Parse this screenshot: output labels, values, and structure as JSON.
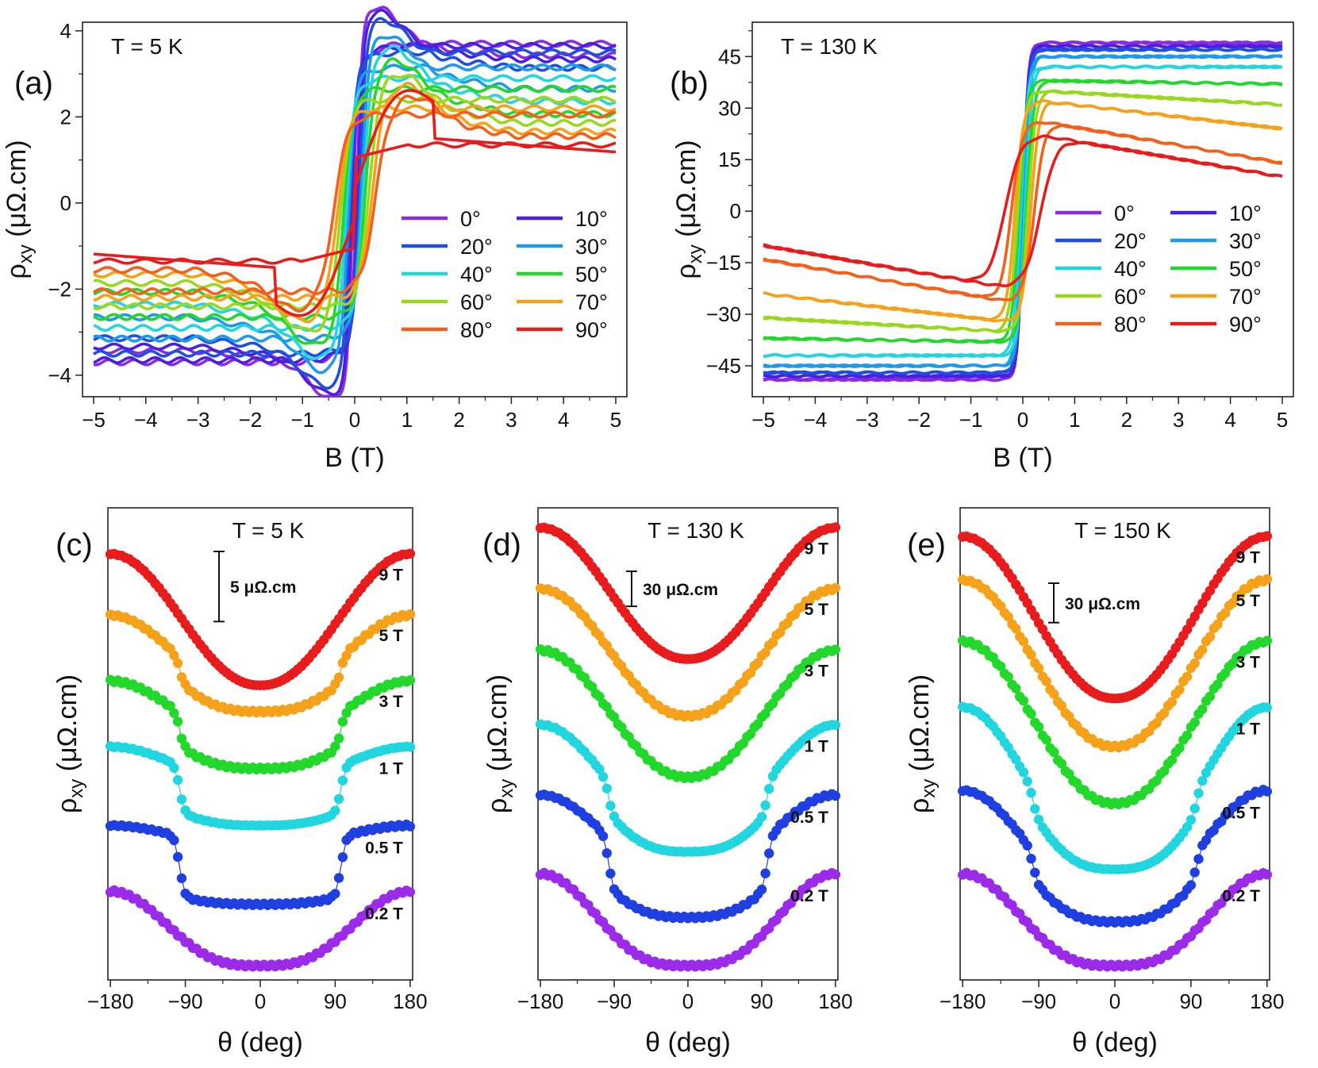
{
  "chart_data": [
    {
      "id": "a",
      "type": "line",
      "panel_label": "(a)",
      "annotation": "T = 5 K",
      "xlabel": "B (T)",
      "ylabel_main": "ρ",
      "ylabel_sub": "xy",
      "ylabel_unit": " (μΩ.cm)",
      "xlim": [
        -5,
        5
      ],
      "ylim": [
        -4.5,
        4.2
      ],
      "xticks": [
        "−5",
        "−4",
        "−3",
        "−2",
        "−1",
        "0",
        "1",
        "2",
        "3",
        "4",
        "5"
      ],
      "yticks": [
        "−4",
        "−2",
        "0",
        "2",
        "4"
      ],
      "legend": [
        "0°",
        "10°",
        "20°",
        "30°",
        "40°",
        "50°",
        "60°",
        "70°",
        "80°",
        "90°"
      ],
      "series": [
        {
          "name": "0°",
          "color": "#8B2BE2",
          "sat": 3.4,
          "sat_neg": 3.0,
          "hc": 0.05,
          "w": 0.1,
          "peak": 0.85
        },
        {
          "name": "10°",
          "color": "#4B1FE0",
          "sat": 3.3,
          "sat_neg": 3.0,
          "hc": 0.07,
          "w": 0.1,
          "peak": 0.85
        },
        {
          "name": "20°",
          "color": "#1F4FE0",
          "sat": 3.1,
          "sat_neg": 2.9,
          "hc": 0.1,
          "w": 0.11,
          "peak": 0.9
        },
        {
          "name": "30°",
          "color": "#1E9BE8",
          "sat": 2.6,
          "sat_neg": 2.7,
          "hc": 0.13,
          "w": 0.13,
          "peak": 1.0
        },
        {
          "name": "40°",
          "color": "#22D6E0",
          "sat": 2.3,
          "sat_neg": 2.5,
          "hc": 0.17,
          "w": 0.15,
          "peak": 1.1
        },
        {
          "name": "50°",
          "color": "#22D82A",
          "sat": 2.0,
          "sat_neg": 2.3,
          "hc": 0.21,
          "w": 0.17,
          "peak": 1.2
        },
        {
          "name": "60°",
          "color": "#9AD81E",
          "sat": 1.8,
          "sat_neg": 2.0,
          "hc": 0.27,
          "w": 0.19,
          "peak": 1.3
        },
        {
          "name": "70°",
          "color": "#F5A21A",
          "sat": 1.6,
          "sat_neg": 1.8,
          "hc": 0.33,
          "w": 0.22,
          "peak": 1.5
        },
        {
          "name": "80°",
          "color": "#F2601C",
          "sat": 1.5,
          "sat_neg": 1.6,
          "hc": 0.4,
          "w": 0.26,
          "peak": 1.6
        },
        {
          "name": "90°",
          "color": "#E81C1C",
          "sat": 1.2,
          "sat_neg": 1.2,
          "hc": 0.7,
          "w": 0.35,
          "peak": 1.6
        }
      ]
    },
    {
      "id": "b",
      "type": "line",
      "panel_label": "(b)",
      "annotation": "T = 130 K",
      "xlabel": "B (T)",
      "ylabel_main": "ρ",
      "ylabel_sub": "xy",
      "ylabel_unit": " (μΩ.cm)",
      "xlim": [
        -5,
        5
      ],
      "ylim": [
        -54,
        55
      ],
      "xticks": [
        "−5",
        "−4",
        "−3",
        "−2",
        "−1",
        "0",
        "1",
        "2",
        "3",
        "4",
        "5"
      ],
      "yticks": [
        "−45",
        "−30",
        "−15",
        "0",
        "15",
        "30",
        "45"
      ],
      "legend": [
        "0°",
        "10°",
        "20°",
        "30°",
        "40°",
        "50°",
        "60°",
        "70°",
        "80°",
        "90°"
      ],
      "series": [
        {
          "name": "0°",
          "color": "#8B2BE2",
          "sat": 49,
          "top": 49,
          "hc": 0.0,
          "w": 0.1
        },
        {
          "name": "10°",
          "color": "#4B1FE0",
          "sat": 48,
          "top": 48,
          "hc": 0.0,
          "w": 0.1
        },
        {
          "name": "20°",
          "color": "#1F4FE0",
          "sat": 47,
          "top": 47,
          "hc": 0.0,
          "w": 0.11
        },
        {
          "name": "30°",
          "color": "#1E9BE8",
          "sat": 45,
          "top": 45,
          "hc": 0.02,
          "w": 0.12
        },
        {
          "name": "40°",
          "color": "#22D6E0",
          "sat": 42,
          "top": 42,
          "hc": 0.04,
          "w": 0.13
        },
        {
          "name": "50°",
          "color": "#22D82A",
          "sat": 37,
          "top": 38,
          "hc": 0.07,
          "w": 0.14
        },
        {
          "name": "60°",
          "color": "#9AD81E",
          "sat": 31,
          "top": 35,
          "hc": 0.1,
          "w": 0.15
        },
        {
          "name": "70°",
          "color": "#F5A21A",
          "sat": 24,
          "top": 32,
          "hc": 0.15,
          "w": 0.16
        },
        {
          "name": "80°",
          "color": "#F2601C",
          "sat": 14,
          "top": 26,
          "hc": 0.22,
          "w": 0.2
        },
        {
          "name": "90°",
          "color": "#E81C1C",
          "sat": 10,
          "top": 22,
          "hc": 0.35,
          "w": 0.3
        }
      ]
    },
    {
      "id": "c",
      "type": "scatter",
      "panel_label": "(c)",
      "annotation": "T = 5 K",
      "xlabel": "θ (deg)",
      "ylabel_main": "ρ",
      "ylabel_sub": "xy",
      "ylabel_unit": " (μΩ.cm)",
      "xlim": [
        -183,
        183
      ],
      "ylim": [
        0,
        100
      ],
      "xticks": [
        "−180",
        "−90",
        "0",
        "90",
        "180"
      ],
      "scalebar": {
        "label": "5 μΩ.cm",
        "span": 16
      },
      "series": [
        {
          "name": "9 T",
          "color": "#E81C1C",
          "base": 64,
          "amp": 30,
          "kind": "smooth"
        },
        {
          "name": "5 T",
          "color": "#F5A21A",
          "base": 58,
          "amp": 22,
          "kind": "step",
          "step": 6
        },
        {
          "name": "3 T",
          "color": "#22D82A",
          "base": 45,
          "amp": 20,
          "kind": "step",
          "step": 8
        },
        {
          "name": "1 T",
          "color": "#22D6E0",
          "base": 32,
          "amp": 18,
          "kind": "step",
          "step": 11
        },
        {
          "name": "0.5 T",
          "color": "#1F3FE0",
          "base": 14,
          "amp": 18,
          "kind": "step",
          "step": 14
        },
        {
          "name": "0.2 T",
          "color": "#9B2BE8",
          "base": 0,
          "amp": 17,
          "kind": "smooth2"
        }
      ]
    },
    {
      "id": "d",
      "type": "scatter",
      "panel_label": "(d)",
      "annotation": "T = 130 K",
      "xlabel": "θ (deg)",
      "ylabel_main": "ρ",
      "ylabel_sub": "xy",
      "ylabel_unit": " (μΩ.cm)",
      "xlim": [
        -183,
        183
      ],
      "ylim": [
        0,
        100
      ],
      "xticks": [
        "−180",
        "−90",
        "0",
        "90",
        "180"
      ],
      "scalebar": {
        "label": "30 μΩ.cm",
        "span": 8
      },
      "series": [
        {
          "name": "9 T",
          "color": "#E81C1C",
          "base": 70,
          "amp": 30,
          "kind": "smooth"
        },
        {
          "name": "5 T",
          "color": "#F5A21A",
          "base": 57,
          "amp": 29,
          "kind": "smooth"
        },
        {
          "name": "3 T",
          "color": "#22D82A",
          "base": 43,
          "amp": 29,
          "kind": "smooth"
        },
        {
          "name": "1 T",
          "color": "#22D6E0",
          "base": 26,
          "amp": 29,
          "kind": "step",
          "step": 8
        },
        {
          "name": "0.5 T",
          "color": "#1F3FE0",
          "base": 11,
          "amp": 28,
          "kind": "step",
          "step": 12
        },
        {
          "name": "0.2 T",
          "color": "#9B2BE8",
          "base": 0,
          "amp": 21,
          "kind": "smooth2"
        }
      ]
    },
    {
      "id": "e",
      "type": "scatter",
      "panel_label": "(e)",
      "annotation": "T = 150 K",
      "xlabel": "θ (deg)",
      "ylabel_main": "ρ",
      "ylabel_sub": "xy",
      "ylabel_unit": " (μΩ.cm)",
      "xlim": [
        -183,
        183
      ],
      "ylim": [
        0,
        100
      ],
      "xticks": [
        "−180",
        "−90",
        "0",
        "90",
        "180"
      ],
      "scalebar": {
        "label": "30 μΩ.cm",
        "span": 9
      },
      "series": [
        {
          "name": "9 T",
          "color": "#E81C1C",
          "base": 61,
          "amp": 37,
          "kind": "smooth"
        },
        {
          "name": "5 T",
          "color": "#F5A21A",
          "base": 50,
          "amp": 38,
          "kind": "smooth"
        },
        {
          "name": "3 T",
          "color": "#22D82A",
          "base": 37,
          "amp": 37,
          "kind": "smooth"
        },
        {
          "name": "1 T",
          "color": "#22D6E0",
          "base": 22,
          "amp": 37,
          "kind": "step",
          "step": 6
        },
        {
          "name": "0.5 T",
          "color": "#1F3FE0",
          "base": 10,
          "amp": 30,
          "kind": "step",
          "step": 7
        },
        {
          "name": "0.2 T",
          "color": "#9B2BE8",
          "base": 0,
          "amp": 21,
          "kind": "smooth2"
        }
      ]
    }
  ]
}
